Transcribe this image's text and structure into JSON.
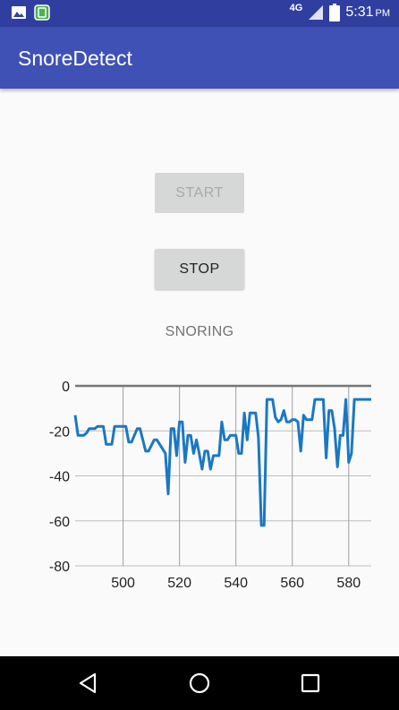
{
  "status_bar": {
    "network": "4G",
    "time": "5:31",
    "ampm": "PM",
    "icons": [
      "image-icon",
      "app-notification-icon",
      "signal-icon",
      "battery-icon"
    ]
  },
  "app": {
    "title": "SnoreDetect"
  },
  "buttons": {
    "start": "START",
    "stop": "STOP"
  },
  "status_text": "SNORING",
  "colors": {
    "status_bar": "#303f9f",
    "app_bar": "#3f51b5",
    "series": "#1a78c2",
    "button": "#d6d7d7"
  },
  "chart_data": {
    "type": "line",
    "xlim": [
      483,
      588
    ],
    "ylim": [
      -80,
      0
    ],
    "x_ticks": [
      500,
      520,
      540,
      560,
      580
    ],
    "y_ticks": [
      0,
      -20,
      -40,
      -60,
      -80
    ],
    "grid": true,
    "series": [
      {
        "x": [
          483,
          484,
          486,
          487,
          488,
          490,
          491,
          493,
          494,
          496,
          497,
          499,
          501,
          502,
          503,
          505,
          506,
          508,
          509,
          511,
          512,
          515,
          516,
          517,
          518,
          519,
          520,
          521,
          522,
          523,
          524,
          525,
          526,
          527,
          528,
          529,
          530,
          531,
          532,
          533,
          534,
          535,
          536,
          537,
          538,
          539,
          540,
          541,
          542,
          543,
          544,
          545,
          546,
          547,
          548,
          549,
          550,
          551,
          552,
          553,
          554,
          555,
          556,
          557,
          558,
          559,
          560,
          561,
          562,
          563,
          564,
          565,
          566,
          567,
          568,
          569,
          570,
          571,
          572,
          573,
          574,
          575,
          576,
          577,
          578,
          579,
          580,
          581,
          582,
          583,
          584,
          585,
          586,
          587,
          588
        ],
        "y": [
          -13,
          -22,
          -22,
          -21,
          -19,
          -19,
          -18,
          -18,
          -26,
          -26,
          -18,
          -18,
          -18,
          -25,
          -25,
          -19,
          -19,
          -29,
          -29,
          -24,
          -24,
          -30,
          -48,
          -19,
          -19,
          -31,
          -16,
          -16,
          -34,
          -22,
          -22,
          -30,
          -24,
          -30,
          -37,
          -29,
          -29,
          -37,
          -31,
          -31,
          -31,
          -16,
          -24,
          -24,
          -22,
          -22,
          -22,
          -30,
          -30,
          -12,
          -24,
          -12,
          -12,
          -12,
          -23,
          -62,
          -62,
          -6,
          -6,
          -6,
          -14,
          -16,
          -15,
          -11,
          -16,
          -16,
          -15,
          -15,
          -16,
          -29,
          -13,
          -15,
          -15,
          -15,
          -6,
          -6,
          -6,
          -6,
          -32,
          -11,
          -11,
          -19,
          -36,
          -22,
          -22,
          -6,
          -34,
          -30,
          -6,
          -6,
          -6,
          -6,
          -6,
          -6,
          -6
        ]
      }
    ]
  }
}
